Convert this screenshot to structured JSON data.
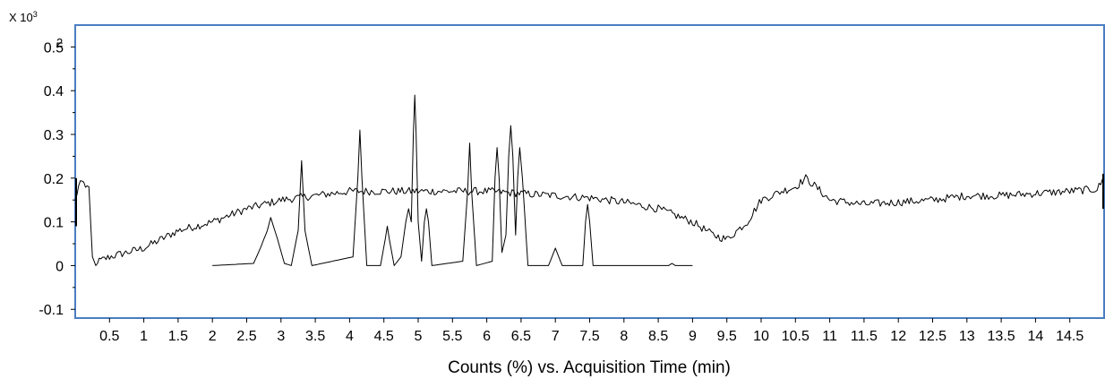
{
  "chart_data": {
    "type": "line",
    "xlabel": "Counts (%) vs. Acquisition Time (min)",
    "ylabel": "",
    "y_multiplier_label": "X 10",
    "y_multiplier_exponent": "3",
    "top_tick_extra": "2",
    "xlim": [
      0,
      15.0
    ],
    "ylim": [
      -0.12,
      0.55
    ],
    "x_ticks": [
      0.5,
      1,
      1.5,
      2,
      2.5,
      3,
      3.5,
      4,
      4.5,
      5,
      5.5,
      6,
      6.5,
      7,
      7.5,
      8,
      8.5,
      9,
      9.5,
      10,
      10.5,
      11,
      11.5,
      12,
      12.5,
      13,
      13.5,
      14,
      14.5
    ],
    "x_tick_labels": [
      "0.5",
      "1",
      "1.5",
      "2",
      "2.5",
      "3",
      "3.5",
      "4",
      "4.5",
      "5",
      "5.5",
      "6",
      "6.5",
      "7",
      "7.5",
      "8",
      "8.5",
      "9",
      "9.5",
      "10",
      "10.5",
      "11",
      "11.5",
      "12",
      "12.5",
      "13",
      "13.5",
      "14",
      "14.5"
    ],
    "y_ticks": [
      -0.1,
      0,
      0.1,
      0.2,
      0.3,
      0.4,
      0.5
    ],
    "y_tick_labels": [
      "-0.1",
      "0",
      "0.1",
      "0.2",
      "0.3",
      "0.4",
      "0.5"
    ],
    "grid": false,
    "frame_color": "#4a7ec2",
    "series": [
      {
        "line_color": "#000000",
        "x": [
          0.0,
          0.05,
          0.1,
          0.2,
          0.25,
          0.3,
          0.35,
          0.5,
          1.0,
          1.5,
          2.0,
          2.5,
          3.0,
          3.5,
          4.0,
          4.5,
          5.0,
          5.5,
          6.0,
          6.5,
          7.0,
          7.5,
          8.0,
          8.5,
          9.0,
          9.3,
          9.5,
          9.8,
          10.0,
          10.3,
          10.5,
          10.65,
          10.8,
          11.0,
          11.5,
          12.0,
          12.5,
          13.0,
          13.5,
          14.0,
          14.5,
          14.9,
          15.0
        ],
        "y": [
          0.15,
          0.18,
          0.19,
          0.18,
          0.02,
          0.0,
          0.01,
          0.02,
          0.04,
          0.08,
          0.1,
          0.13,
          0.15,
          0.16,
          0.17,
          0.17,
          0.17,
          0.17,
          0.17,
          0.165,
          0.16,
          0.155,
          0.145,
          0.13,
          0.1,
          0.07,
          0.06,
          0.1,
          0.15,
          0.17,
          0.18,
          0.2,
          0.18,
          0.15,
          0.14,
          0.145,
          0.15,
          0.16,
          0.16,
          0.165,
          0.17,
          0.175,
          0.2
        ]
      },
      {
        "line_color": "#000000",
        "x": [
          2.0,
          2.6,
          2.7,
          2.8,
          2.85,
          2.95,
          3.05,
          3.15,
          3.25,
          3.3,
          3.35,
          3.45,
          4.05,
          4.12,
          4.15,
          4.18,
          4.25,
          4.45,
          4.52,
          4.55,
          4.58,
          4.65,
          4.75,
          4.82,
          4.86,
          4.9,
          4.93,
          4.95,
          4.97,
          5.0,
          5.05,
          5.09,
          5.12,
          5.15,
          5.2,
          5.65,
          5.72,
          5.75,
          5.78,
          5.85,
          6.08,
          6.12,
          6.15,
          6.18,
          6.22,
          6.28,
          6.32,
          6.35,
          6.38,
          6.42,
          6.45,
          6.48,
          6.52,
          6.6,
          6.9,
          6.95,
          7.0,
          7.05,
          7.1,
          7.4,
          7.44,
          7.47,
          7.5,
          7.55,
          8.5,
          8.65,
          8.7,
          8.75,
          9.0
        ],
        "y": [
          0.0,
          0.005,
          0.04,
          0.08,
          0.11,
          0.06,
          0.005,
          0.0,
          0.08,
          0.24,
          0.08,
          0.0,
          0.02,
          0.2,
          0.31,
          0.2,
          0.0,
          0.0,
          0.06,
          0.09,
          0.06,
          0.0,
          0.02,
          0.1,
          0.13,
          0.1,
          0.3,
          0.39,
          0.3,
          0.1,
          0.01,
          0.1,
          0.13,
          0.1,
          0.0,
          0.01,
          0.17,
          0.28,
          0.17,
          0.0,
          0.01,
          0.2,
          0.27,
          0.2,
          0.03,
          0.07,
          0.25,
          0.32,
          0.25,
          0.07,
          0.2,
          0.27,
          0.2,
          0.0,
          0.0,
          0.02,
          0.04,
          0.02,
          0.0,
          0.0,
          0.1,
          0.14,
          0.1,
          0.0,
          0.0,
          0.0,
          0.005,
          0.0,
          0.0
        ]
      }
    ]
  }
}
